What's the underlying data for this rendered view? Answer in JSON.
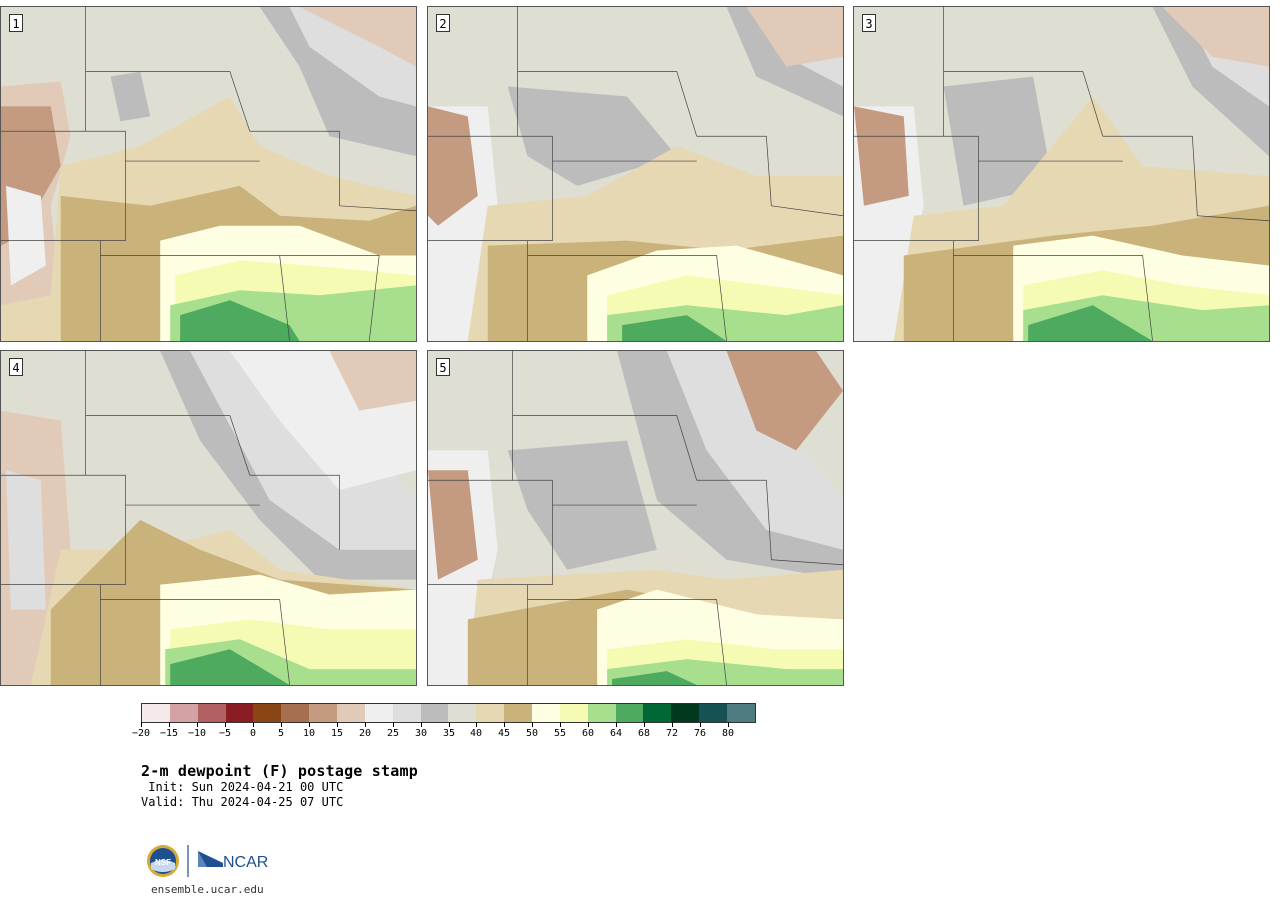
{
  "panels": [
    {
      "label": "1"
    },
    {
      "label": "2"
    },
    {
      "label": "3"
    },
    {
      "label": "4"
    },
    {
      "label": "5"
    }
  ],
  "colorbar": {
    "colors": [
      "#f4eaea",
      "#d4a1a4",
      "#b26062",
      "#8a1d23",
      "#8a4515",
      "#a66f4f",
      "#c49a80",
      "#e2cab9",
      "#efefef",
      "#dedede",
      "#bcbcbc",
      "#dedfd2",
      "#e5d8b3",
      "#cab27b",
      "#feffe2",
      "#f6fbb4",
      "#a8df8f",
      "#4daa5f",
      "#006834",
      "#00391d",
      "#165254",
      "#4f7c80"
    ],
    "tick_labels": [
      "−20",
      "−15",
      "−10",
      "−5",
      "0",
      "5",
      "10",
      "15",
      "20",
      "25",
      "30",
      "35",
      "40",
      "45",
      "50",
      "55",
      "60",
      "64",
      "68",
      "72",
      "76",
      "80"
    ]
  },
  "title": "2-m dewpoint (F) postage stamp",
  "init": " Init: Sun 2024-04-21 00 UTC",
  "valid": "Valid: Thu 2024-04-25 07 UTC",
  "logos": {
    "nsf": "NSF",
    "ncar": "NCAR"
  },
  "website": "ensemble.ucar.edu"
}
